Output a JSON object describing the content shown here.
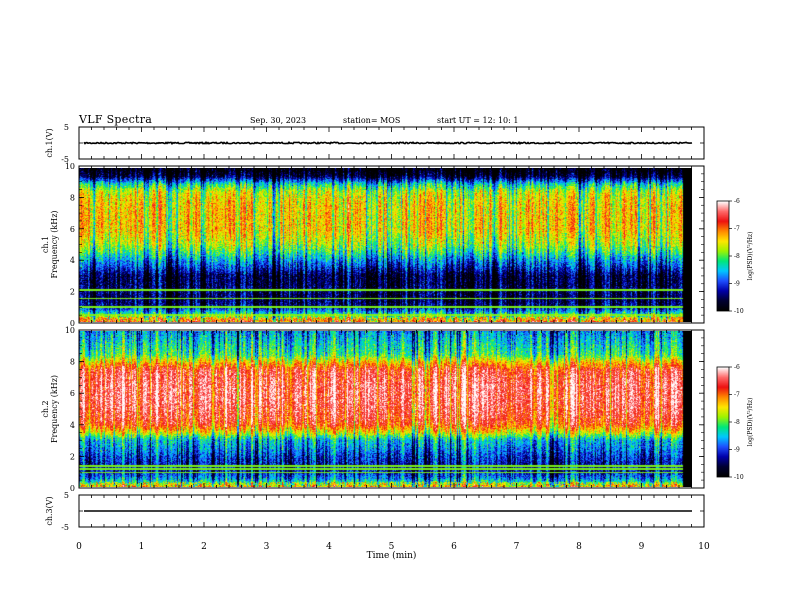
{
  "header": {
    "title": "VLF Spectra",
    "date": "Sep. 30, 2023",
    "station": "station= MOS",
    "start": "start  UT =   12: 10: 1"
  },
  "colors": {
    "spectrum_scale": [
      "#000000",
      "#000033",
      "#0000aa",
      "#1e4fff",
      "#00c8ff",
      "#00e878",
      "#9ef400",
      "#ffe600",
      "#ff8800",
      "#ee1111",
      "#ff6a6a",
      "#ffffff"
    ],
    "ink": "#000000"
  },
  "chart_data": [
    {
      "type": "line",
      "panel": "ch1-waveform",
      "ylabel": "ch.1(V)",
      "yticks": [
        "5",
        "-5"
      ],
      "ylim": [
        -5,
        5
      ],
      "level": 0,
      "xlim": [
        0,
        10
      ]
    },
    {
      "type": "heatmap",
      "panel": "ch1-spectrogram",
      "ylabel": "ch.1\nFrequency (kHz)",
      "yticks": [
        "0",
        "2",
        "4",
        "6",
        "8",
        "10"
      ],
      "ylim": [
        0,
        10
      ],
      "xlim": [
        0,
        9.85
      ],
      "colorbar": {
        "label": "log(PSD)(V²/Hz)",
        "ticks": [
          "-6",
          "-7",
          "-8",
          "-9",
          "-10"
        ],
        "range": [
          -10,
          -6
        ]
      },
      "profile_freq_khz": [
        0,
        0.5,
        1,
        1.5,
        2,
        2.5,
        3,
        3.5,
        4,
        4.5,
        5,
        5.5,
        6,
        6.5,
        7,
        7.5,
        8,
        8.5,
        9,
        9.5,
        10
      ],
      "profile_log_psd": [
        -7.2,
        -8.2,
        -9.3,
        -9.5,
        -9.4,
        -9.5,
        -9.5,
        -9.0,
        -8.6,
        -8.1,
        -7.7,
        -7.5,
        -7.3,
        -7.3,
        -7.3,
        -7.3,
        -7.4,
        -7.6,
        -8.3,
        -9.6,
        -10
      ]
    },
    {
      "type": "heatmap",
      "panel": "ch2-spectrogram",
      "ylabel": "ch.2\nFrequency (kHz)",
      "yticks": [
        "0",
        "2",
        "4",
        "6",
        "8",
        "10"
      ],
      "ylim": [
        0,
        10
      ],
      "xlim": [
        0,
        9.85
      ],
      "colorbar": {
        "label": "log(PSD)(V²/Hz)",
        "ticks": [
          "-6",
          "-7",
          "-8",
          "-9",
          "-10"
        ],
        "range": [
          -10,
          -6
        ]
      },
      "profile_freq_khz": [
        0,
        0.5,
        1,
        1.5,
        2,
        2.5,
        3,
        3.5,
        4,
        4.5,
        5,
        5.5,
        6,
        6.5,
        7,
        7.5,
        8,
        8.5,
        9,
        9.5,
        10
      ],
      "profile_log_psd": [
        -7.6,
        -8.6,
        -9.1,
        -9.1,
        -8.9,
        -8.6,
        -8.4,
        -7.4,
        -6.7,
        -6.5,
        -6.4,
        -6.3,
        -6.3,
        -6.3,
        -6.4,
        -6.5,
        -7.2,
        -8.0,
        -8.2,
        -8.4,
        -8.6
      ]
    },
    {
      "type": "line",
      "panel": "ch3-waveform",
      "ylabel": "ch.3(V)",
      "yticks": [
        "5",
        "-5"
      ],
      "ylim": [
        -5,
        5
      ],
      "level": 0,
      "xlim": [
        0,
        10
      ]
    }
  ],
  "xaxis": {
    "label": "Time (min)",
    "ticks": [
      "0",
      "1",
      "2",
      "3",
      "4",
      "5",
      "6",
      "7",
      "8",
      "9",
      "10"
    ]
  }
}
